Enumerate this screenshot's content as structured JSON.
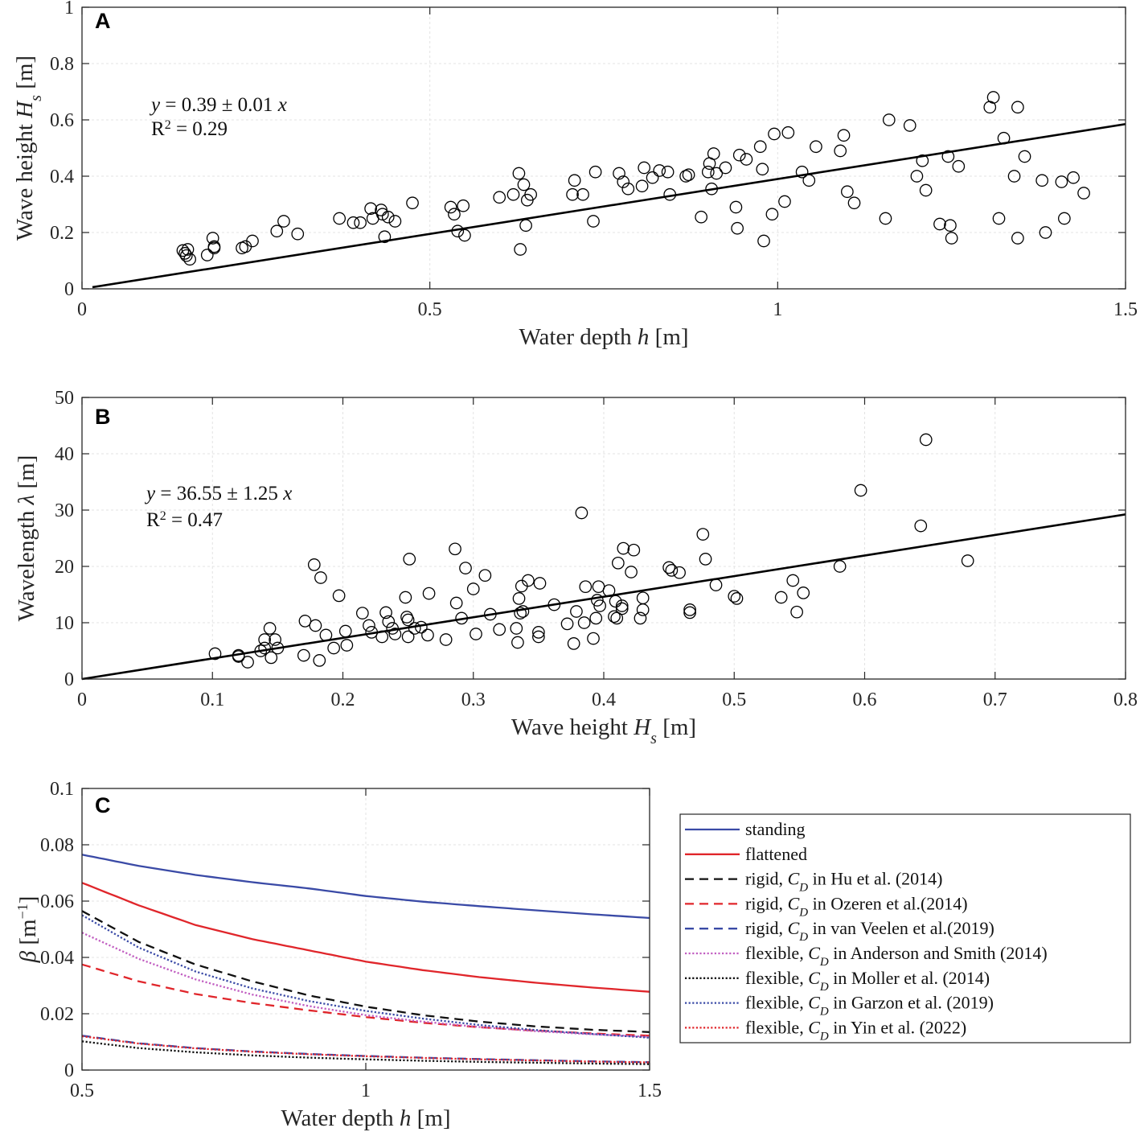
{
  "chart_data": [
    {
      "panel": "A",
      "type": "scatter",
      "xlabel": "Water depth h [m]",
      "ylabel": "Wave height Hs [m]",
      "xlim": [
        0,
        1.5
      ],
      "ylim": [
        0,
        1
      ],
      "xticks": [
        0,
        0.5,
        1,
        1.5
      ],
      "xtick_labels": [
        "0",
        "0.5",
        "1",
        "1.5"
      ],
      "yticks": [
        0,
        0.2,
        0.4,
        0.6,
        0.8,
        1
      ],
      "ytick_labels": [
        "0",
        "0.2",
        "0.4",
        "0.6",
        "0.8",
        "1"
      ],
      "fit": {
        "slope": 0.39,
        "x_range": [
          0.015,
          1.5
        ]
      },
      "annotation": [
        "y = 0.39 ± 0.01 x",
        "R² = 0.29"
      ],
      "points": [
        [
          0.145,
          0.136
        ],
        [
          0.148,
          0.126
        ],
        [
          0.15,
          0.118
        ],
        [
          0.152,
          0.14
        ],
        [
          0.155,
          0.105
        ],
        [
          0.18,
          0.12
        ],
        [
          0.188,
          0.18
        ],
        [
          0.19,
          0.15
        ],
        [
          0.19,
          0.145
        ],
        [
          0.23,
          0.145
        ],
        [
          0.235,
          0.15
        ],
        [
          0.245,
          0.17
        ],
        [
          0.28,
          0.205
        ],
        [
          0.29,
          0.24
        ],
        [
          0.31,
          0.195
        ],
        [
          0.37,
          0.25
        ],
        [
          0.39,
          0.235
        ],
        [
          0.4,
          0.235
        ],
        [
          0.415,
          0.285
        ],
        [
          0.418,
          0.25
        ],
        [
          0.43,
          0.28
        ],
        [
          0.432,
          0.265
        ],
        [
          0.435,
          0.185
        ],
        [
          0.44,
          0.255
        ],
        [
          0.45,
          0.24
        ],
        [
          0.475,
          0.305
        ],
        [
          0.53,
          0.29
        ],
        [
          0.535,
          0.265
        ],
        [
          0.54,
          0.205
        ],
        [
          0.548,
          0.295
        ],
        [
          0.55,
          0.19
        ],
        [
          0.6,
          0.325
        ],
        [
          0.62,
          0.335
        ],
        [
          0.628,
          0.41
        ],
        [
          0.63,
          0.14
        ],
        [
          0.635,
          0.37
        ],
        [
          0.638,
          0.225
        ],
        [
          0.64,
          0.315
        ],
        [
          0.645,
          0.335
        ],
        [
          0.705,
          0.335
        ],
        [
          0.708,
          0.385
        ],
        [
          0.72,
          0.335
        ],
        [
          0.735,
          0.24
        ],
        [
          0.738,
          0.415
        ],
        [
          0.772,
          0.41
        ],
        [
          0.778,
          0.38
        ],
        [
          0.785,
          0.355
        ],
        [
          0.805,
          0.365
        ],
        [
          0.808,
          0.43
        ],
        [
          0.82,
          0.395
        ],
        [
          0.83,
          0.42
        ],
        [
          0.842,
          0.415
        ],
        [
          0.845,
          0.335
        ],
        [
          0.868,
          0.4
        ],
        [
          0.872,
          0.405
        ],
        [
          0.89,
          0.255
        ],
        [
          0.9,
          0.415
        ],
        [
          0.902,
          0.445
        ],
        [
          0.905,
          0.355
        ],
        [
          0.908,
          0.48
        ],
        [
          0.912,
          0.41
        ],
        [
          0.925,
          0.43
        ],
        [
          0.94,
          0.29
        ],
        [
          0.942,
          0.215
        ],
        [
          0.945,
          0.475
        ],
        [
          0.955,
          0.46
        ],
        [
          0.975,
          0.505
        ],
        [
          0.978,
          0.425
        ],
        [
          0.98,
          0.17
        ],
        [
          0.992,
          0.265
        ],
        [
          0.995,
          0.55
        ],
        [
          1.01,
          0.31
        ],
        [
          1.015,
          0.555
        ],
        [
          1.035,
          0.415
        ],
        [
          1.045,
          0.385
        ],
        [
          1.055,
          0.505
        ],
        [
          1.09,
          0.49
        ],
        [
          1.095,
          0.545
        ],
        [
          1.1,
          0.345
        ],
        [
          1.11,
          0.305
        ],
        [
          1.155,
          0.25
        ],
        [
          1.16,
          0.6
        ],
        [
          1.19,
          0.58
        ],
        [
          1.2,
          0.4
        ],
        [
          1.208,
          0.455
        ],
        [
          1.213,
          0.35
        ],
        [
          1.233,
          0.23
        ],
        [
          1.245,
          0.47
        ],
        [
          1.248,
          0.225
        ],
        [
          1.25,
          0.18
        ],
        [
          1.26,
          0.435
        ],
        [
          1.305,
          0.645
        ],
        [
          1.31,
          0.68
        ],
        [
          1.318,
          0.25
        ],
        [
          1.325,
          0.535
        ],
        [
          1.34,
          0.4
        ],
        [
          1.345,
          0.645
        ],
        [
          1.345,
          0.18
        ],
        [
          1.355,
          0.47
        ],
        [
          1.38,
          0.385
        ],
        [
          1.385,
          0.2
        ],
        [
          1.408,
          0.38
        ],
        [
          1.412,
          0.25
        ],
        [
          1.425,
          0.395
        ],
        [
          1.44,
          0.34
        ]
      ]
    },
    {
      "panel": "B",
      "type": "scatter",
      "xlabel": "Wave height Hs [m]",
      "ylabel": "Wavelength λ [m]",
      "xlim": [
        0,
        0.8
      ],
      "ylim": [
        0,
        50
      ],
      "xticks": [
        0,
        0.1,
        0.2,
        0.3,
        0.4,
        0.5,
        0.6,
        0.7,
        0.8
      ],
      "xtick_labels": [
        "0",
        "0.1",
        "0.2",
        "0.3",
        "0.4",
        "0.5",
        "0.6",
        "0.7",
        "0.8"
      ],
      "yticks": [
        0,
        10,
        20,
        30,
        40,
        50
      ],
      "ytick_labels": [
        "0",
        "10",
        "20",
        "30",
        "40",
        "50"
      ],
      "fit": {
        "slope": 36.55,
        "x_range": [
          0,
          0.8
        ]
      },
      "annotation": [
        "y = 36.55 ± 1.25 x",
        "R² = 0.47"
      ],
      "points": [
        [
          0.102,
          4.5
        ],
        [
          0.12,
          4.0
        ],
        [
          0.12,
          4.2
        ],
        [
          0.127,
          3.0
        ],
        [
          0.137,
          5.0
        ],
        [
          0.14,
          7.0
        ],
        [
          0.14,
          5.5
        ],
        [
          0.144,
          9.0
        ],
        [
          0.145,
          3.8
        ],
        [
          0.148,
          7.0
        ],
        [
          0.15,
          5.5
        ],
        [
          0.17,
          4.2
        ],
        [
          0.171,
          10.3
        ],
        [
          0.178,
          20.3
        ],
        [
          0.179,
          9.5
        ],
        [
          0.182,
          3.3
        ],
        [
          0.183,
          18.0
        ],
        [
          0.187,
          7.8
        ],
        [
          0.193,
          5.5
        ],
        [
          0.197,
          14.8
        ],
        [
          0.202,
          8.5
        ],
        [
          0.203,
          6.0
        ],
        [
          0.215,
          11.7
        ],
        [
          0.22,
          9.5
        ],
        [
          0.222,
          8.3
        ],
        [
          0.23,
          7.5
        ],
        [
          0.233,
          11.8
        ],
        [
          0.235,
          10.2
        ],
        [
          0.238,
          9.0
        ],
        [
          0.24,
          8.0
        ],
        [
          0.248,
          14.5
        ],
        [
          0.249,
          11.0
        ],
        [
          0.25,
          7.5
        ],
        [
          0.25,
          10.5
        ],
        [
          0.251,
          21.3
        ],
        [
          0.255,
          9.0
        ],
        [
          0.26,
          9.2
        ],
        [
          0.265,
          7.8
        ],
        [
          0.266,
          15.2
        ],
        [
          0.279,
          7.0
        ],
        [
          0.286,
          23.1
        ],
        [
          0.287,
          13.5
        ],
        [
          0.291,
          10.8
        ],
        [
          0.294,
          19.7
        ],
        [
          0.3,
          16.0
        ],
        [
          0.302,
          8.0
        ],
        [
          0.309,
          18.4
        ],
        [
          0.313,
          11.5
        ],
        [
          0.32,
          8.8
        ],
        [
          0.333,
          9.0
        ],
        [
          0.334,
          6.5
        ],
        [
          0.335,
          14.3
        ],
        [
          0.336,
          11.7
        ],
        [
          0.337,
          16.5
        ],
        [
          0.338,
          12.0
        ],
        [
          0.342,
          17.5
        ],
        [
          0.35,
          8.3
        ],
        [
          0.351,
          17.0
        ],
        [
          0.35,
          7.5
        ],
        [
          0.362,
          13.2
        ],
        [
          0.372,
          9.8
        ],
        [
          0.377,
          6.3
        ],
        [
          0.379,
          12.0
        ],
        [
          0.383,
          29.5
        ],
        [
          0.385,
          10.0
        ],
        [
          0.386,
          16.4
        ],
        [
          0.392,
          7.2
        ],
        [
          0.394,
          10.8
        ],
        [
          0.395,
          14.0
        ],
        [
          0.396,
          16.4
        ],
        [
          0.397,
          13.0
        ],
        [
          0.404,
          15.7
        ],
        [
          0.408,
          11.1
        ],
        [
          0.41,
          10.8
        ],
        [
          0.409,
          13.8
        ],
        [
          0.411,
          20.6
        ],
        [
          0.414,
          12.5
        ],
        [
          0.414,
          13.0
        ],
        [
          0.415,
          23.2
        ],
        [
          0.421,
          19.0
        ],
        [
          0.423,
          22.9
        ],
        [
          0.428,
          10.8
        ],
        [
          0.43,
          12.3
        ],
        [
          0.43,
          14.4
        ],
        [
          0.45,
          19.8
        ],
        [
          0.452,
          19.3
        ],
        [
          0.458,
          18.9
        ],
        [
          0.466,
          12.3
        ],
        [
          0.466,
          11.8
        ],
        [
          0.476,
          25.7
        ],
        [
          0.478,
          21.3
        ],
        [
          0.486,
          16.7
        ],
        [
          0.5,
          14.7
        ],
        [
          0.502,
          14.3
        ],
        [
          0.536,
          14.5
        ],
        [
          0.545,
          17.5
        ],
        [
          0.548,
          11.9
        ],
        [
          0.553,
          15.3
        ],
        [
          0.581,
          20.0
        ],
        [
          0.597,
          33.5
        ],
        [
          0.643,
          27.2
        ],
        [
          0.647,
          42.5
        ],
        [
          0.679,
          21.0
        ]
      ]
    },
    {
      "panel": "C",
      "type": "line",
      "xlabel": "Water depth h [m]",
      "ylabel": "β [m⁻¹]",
      "xlim": [
        0.5,
        1.5
      ],
      "ylim": [
        0,
        0.1
      ],
      "xticks": [
        0.5,
        1,
        1.5
      ],
      "xtick_labels": [
        "0.5",
        "1",
        "1.5"
      ],
      "yticks": [
        0,
        0.02,
        0.04,
        0.06,
        0.08,
        0.1
      ],
      "ytick_labels": [
        "0",
        "0.02",
        "0.04",
        "0.06",
        "0.08",
        "0.1"
      ],
      "x": [
        0.5,
        0.6,
        0.7,
        0.8,
        0.9,
        1.0,
        1.1,
        1.2,
        1.3,
        1.4,
        1.5
      ],
      "series": [
        {
          "name": "standing",
          "color": "#3a4aa6",
          "dash": "solid",
          "values": [
            0.0765,
            0.0725,
            0.0693,
            0.0667,
            0.0645,
            0.0618,
            0.0598,
            0.0582,
            0.0567,
            0.0553,
            0.054
          ]
        },
        {
          "name": "flattened",
          "color": "#e0262b",
          "dash": "solid",
          "values": [
            0.0665,
            0.0585,
            0.0515,
            0.0465,
            0.0425,
            0.0385,
            0.0355,
            0.033,
            0.031,
            0.0293,
            0.0278
          ]
        },
        {
          "name": "rigid, CD in Hu et al. (2014)",
          "color": "#111111",
          "dash": "dashed",
          "values": [
            0.0565,
            0.0455,
            0.0375,
            0.0315,
            0.0265,
            0.0225,
            0.0195,
            0.0172,
            0.0155,
            0.0143,
            0.0135
          ]
        },
        {
          "name": "rigid, CD in Ozeren et al.(2014)",
          "color": "#e0262b",
          "dash": "dashed",
          "values": [
            0.0375,
            0.0315,
            0.027,
            0.0238,
            0.0212,
            0.0188,
            0.0168,
            0.0152,
            0.014,
            0.013,
            0.0122
          ]
        },
        {
          "name": "rigid, CD in van Veelen et al.(2019)",
          "color": "#3a4aa6",
          "dash": "dashed",
          "values": [
            0.0122,
            0.0095,
            0.0078,
            0.0066,
            0.0057,
            0.005,
            0.0044,
            0.0039,
            0.0035,
            0.0031,
            0.0028
          ]
        },
        {
          "name": "flexible, CD in Anderson and Smith (2014)",
          "color": "#c15ec1",
          "dash": "dotted",
          "values": [
            0.0488,
            0.0395,
            0.0322,
            0.0268,
            0.0227,
            0.0195,
            0.0172,
            0.0153,
            0.0138,
            0.0127,
            0.0118
          ]
        },
        {
          "name": "flexible, CD in Moller et al. (2014)",
          "color": "#111111",
          "dash": "dotted",
          "values": [
            0.0102,
            0.0078,
            0.0063,
            0.0052,
            0.0044,
            0.0038,
            0.0033,
            0.0029,
            0.0026,
            0.0023,
            0.0021
          ]
        },
        {
          "name": "flexible, CD in Garzon et al. (2019)",
          "color": "#3a4aa6",
          "dash": "dotted",
          "values": [
            0.055,
            0.0435,
            0.035,
            0.029,
            0.0245,
            0.021,
            0.0183,
            0.016,
            0.0142,
            0.0128,
            0.0115
          ]
        },
        {
          "name": "flexible, CD in Yin et al. (2022)",
          "color": "#e0262b",
          "dash": "dotted",
          "values": [
            0.012,
            0.0094,
            0.0077,
            0.0065,
            0.0056,
            0.0049,
            0.0043,
            0.0038,
            0.0034,
            0.003,
            0.0027
          ]
        }
      ],
      "legend": [
        {
          "prefix": "standing",
          "suffix": ""
        },
        {
          "prefix": "flattened",
          "suffix": ""
        },
        {
          "prefix": "rigid, ",
          "suffix": " in Hu et al. (2014)"
        },
        {
          "prefix": "rigid, ",
          "suffix": " in Ozeren et al.(2014)"
        },
        {
          "prefix": "rigid, ",
          "suffix": " in van Veelen et al.(2019)"
        },
        {
          "prefix": "flexible, ",
          "suffix": " in Anderson and Smith (2014)"
        },
        {
          "prefix": "flexible, ",
          "suffix": " in Moller et al. (2014)"
        },
        {
          "prefix": "flexible, ",
          "suffix": " in Garzon et al. (2019)"
        },
        {
          "prefix": "flexible, ",
          "suffix": " in Yin et al. (2022)"
        }
      ]
    }
  ]
}
